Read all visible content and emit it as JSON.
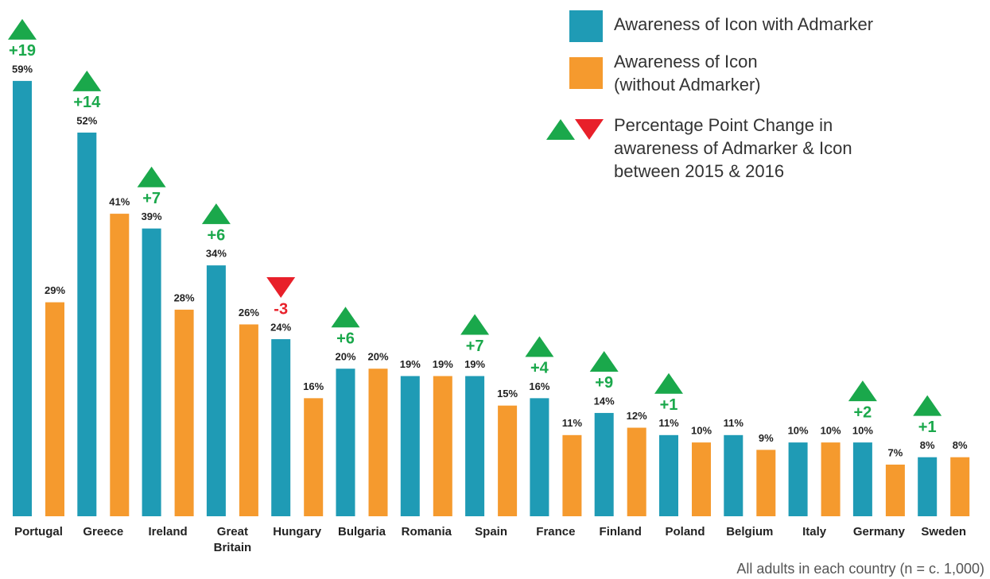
{
  "chart_data": {
    "type": "bar",
    "categories": [
      "Portugal",
      "Greece",
      "Ireland",
      "Great\nBritain",
      "Hungary",
      "Bulgaria",
      "Romania",
      "Spain",
      "France",
      "Finland",
      "Poland",
      "Belgium",
      "Italy",
      "Germany",
      "Sweden"
    ],
    "series": [
      {
        "name": "Awareness of Icon with Admarker",
        "color": "#1f9bb5",
        "values": [
          59,
          52,
          39,
          34,
          24,
          20,
          19,
          19,
          16,
          14,
          11,
          11,
          10,
          10,
          8
        ],
        "value_labels": [
          "59%",
          "52%",
          "39%",
          "34%",
          "24%",
          "20%",
          "19%",
          "19%",
          "16%",
          "14%",
          "11%",
          "11%",
          "10%",
          "10%",
          "8%"
        ]
      },
      {
        "name": "Awareness of Icon\n(without Admarker)",
        "color": "#f59a2e",
        "values": [
          29,
          41,
          28,
          26,
          16,
          20,
          19,
          15,
          11,
          12,
          10,
          9,
          10,
          7,
          8
        ],
        "value_labels": [
          "29%",
          "41%",
          "28%",
          "26%",
          "16%",
          "20%",
          "19%",
          "15%",
          "11%",
          "12%",
          "10%",
          "9%",
          "10%",
          "7%",
          "8%"
        ]
      }
    ],
    "changes": {
      "name": "Percentage Point Change in\nawareness of Admarker & Icon\nbetween 2015 & 2016",
      "up_color": "#1aa84b",
      "down_color": "#e8202a",
      "values": [
        19,
        14,
        7,
        6,
        -3,
        6,
        null,
        7,
        4,
        9,
        1,
        null,
        null,
        2,
        1
      ],
      "value_labels": [
        "+19",
        "+14",
        "+7",
        "+6",
        "-3",
        "+6",
        null,
        "+7",
        "+4",
        "+9",
        "+1",
        null,
        null,
        "+2",
        "+1"
      ]
    },
    "footnote": "All adults in each country (n = c. 1,000)"
  }
}
